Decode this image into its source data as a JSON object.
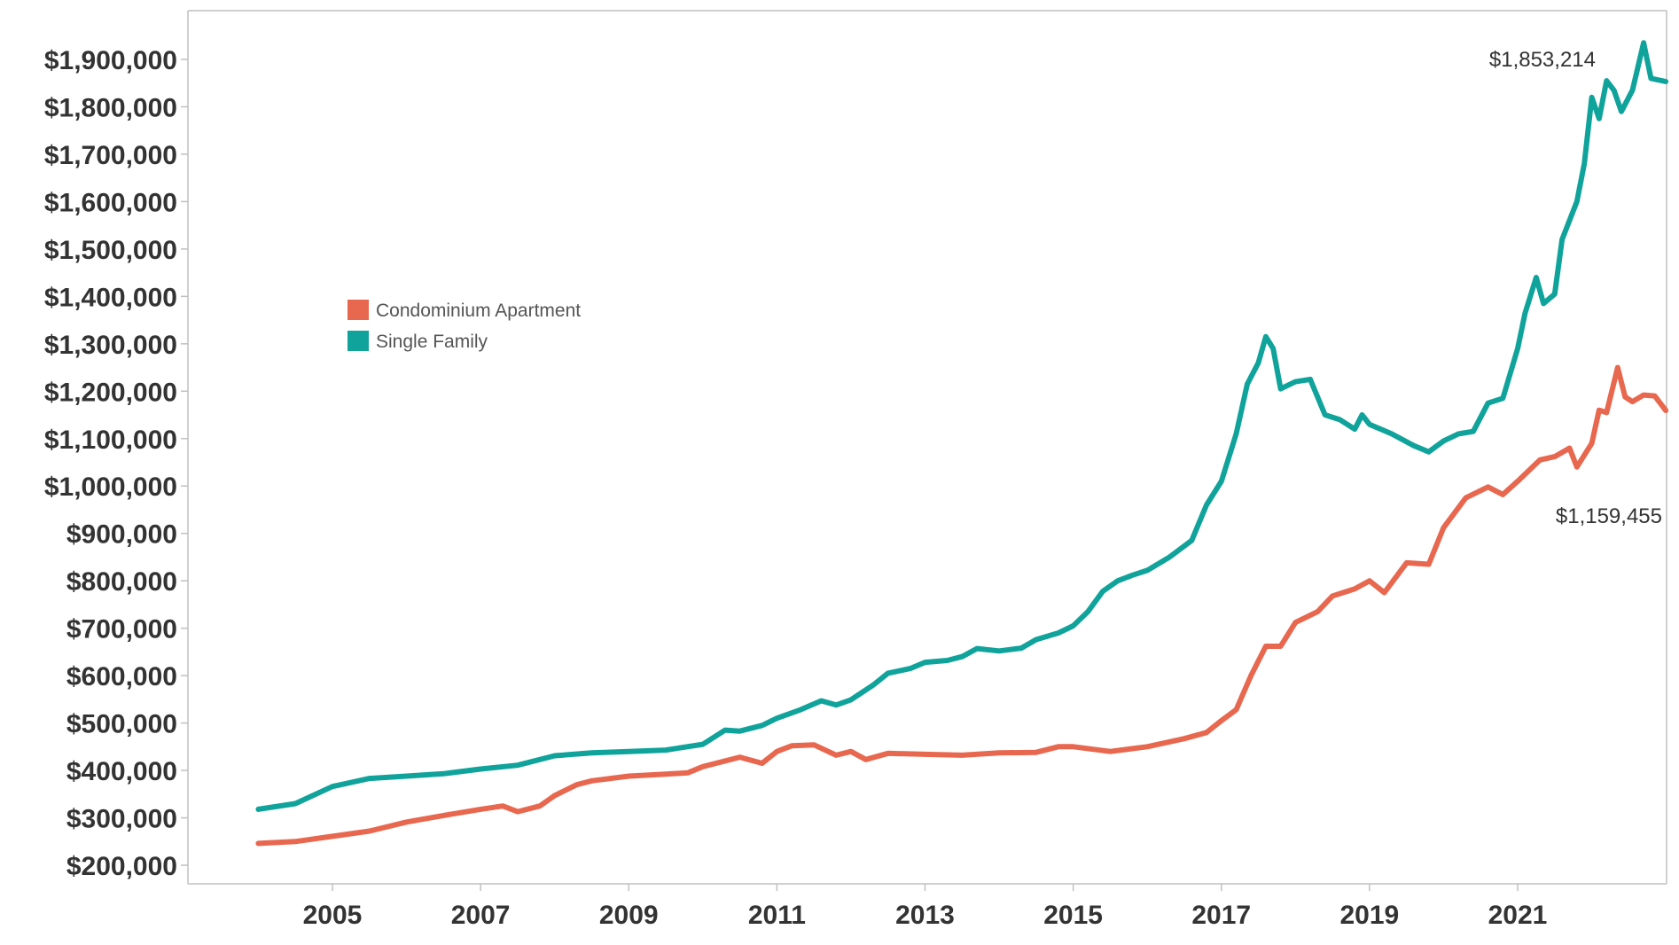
{
  "chart_data": {
    "type": "line",
    "title": "",
    "xlabel": "",
    "ylabel": "",
    "x_ticks": [
      "2005",
      "2007",
      "2009",
      "2011",
      "2013",
      "2015",
      "2017",
      "2019",
      "2021"
    ],
    "y_ticks": [
      "$200,000",
      "$300,000",
      "$400,000",
      "$500,000",
      "$600,000",
      "$700,000",
      "$800,000",
      "$900,000",
      "$1,000,000",
      "$1,100,000",
      "$1,200,000",
      "$1,300,000",
      "$1,400,000",
      "$1,500,000",
      "$1,600,000",
      "$1,700,000",
      "$1,800,000",
      "$1,900,000"
    ],
    "ylim": [
      200000,
      1900000
    ],
    "grid": false,
    "legend_position": "upper-left inside plot",
    "series": [
      {
        "name": "Condominium Apartment",
        "color": "#E8674F",
        "end_label": "$1,159,455",
        "points": [
          [
            2004.0,
            246000
          ],
          [
            2004.5,
            250000
          ],
          [
            2005.0,
            261000
          ],
          [
            2005.5,
            272000
          ],
          [
            2006.0,
            291000
          ],
          [
            2006.5,
            305000
          ],
          [
            2007.0,
            318000
          ],
          [
            2007.3,
            325000
          ],
          [
            2007.5,
            313000
          ],
          [
            2007.8,
            325000
          ],
          [
            2008.0,
            347000
          ],
          [
            2008.3,
            370000
          ],
          [
            2008.5,
            378000
          ],
          [
            2009.0,
            388000
          ],
          [
            2009.5,
            392000
          ],
          [
            2009.8,
            395000
          ],
          [
            2010.0,
            408000
          ],
          [
            2010.5,
            428000
          ],
          [
            2010.8,
            415000
          ],
          [
            2011.0,
            440000
          ],
          [
            2011.2,
            452000
          ],
          [
            2011.5,
            454000
          ],
          [
            2011.8,
            432000
          ],
          [
            2012.0,
            440000
          ],
          [
            2012.2,
            423000
          ],
          [
            2012.5,
            436000
          ],
          [
            2013.0,
            434000
          ],
          [
            2013.5,
            432000
          ],
          [
            2014.0,
            437000
          ],
          [
            2014.5,
            438000
          ],
          [
            2014.8,
            450000
          ],
          [
            2015.0,
            450000
          ],
          [
            2015.5,
            440000
          ],
          [
            2016.0,
            450000
          ],
          [
            2016.5,
            467000
          ],
          [
            2016.8,
            480000
          ],
          [
            2017.0,
            505000
          ],
          [
            2017.2,
            528000
          ],
          [
            2017.4,
            600000
          ],
          [
            2017.6,
            662000
          ],
          [
            2017.8,
            662000
          ],
          [
            2018.0,
            712000
          ],
          [
            2018.3,
            735000
          ],
          [
            2018.5,
            768000
          ],
          [
            2018.8,
            783000
          ],
          [
            2019.0,
            800000
          ],
          [
            2019.2,
            775000
          ],
          [
            2019.5,
            838000
          ],
          [
            2019.8,
            835000
          ],
          [
            2020.0,
            912000
          ],
          [
            2020.3,
            975000
          ],
          [
            2020.6,
            998000
          ],
          [
            2020.8,
            982000
          ],
          [
            2021.0,
            1010000
          ],
          [
            2021.3,
            1055000
          ],
          [
            2021.5,
            1062000
          ],
          [
            2021.7,
            1080000
          ],
          [
            2021.8,
            1040000
          ],
          [
            2022.0,
            1090000
          ],
          [
            2022.1,
            1160000
          ],
          [
            2022.2,
            1155000
          ],
          [
            2022.35,
            1250000
          ],
          [
            2022.45,
            1188000
          ],
          [
            2022.55,
            1178000
          ],
          [
            2022.7,
            1192000
          ],
          [
            2022.85,
            1190000
          ],
          [
            2023.0,
            1159455
          ]
        ]
      },
      {
        "name": "Single Family",
        "color": "#10A39B",
        "end_label": "$1,853,214",
        "points": [
          [
            2004.0,
            318000
          ],
          [
            2004.5,
            330000
          ],
          [
            2005.0,
            366000
          ],
          [
            2005.5,
            383000
          ],
          [
            2006.0,
            388000
          ],
          [
            2006.5,
            393000
          ],
          [
            2007.0,
            403000
          ],
          [
            2007.5,
            411000
          ],
          [
            2008.0,
            431000
          ],
          [
            2008.5,
            437000
          ],
          [
            2009.0,
            440000
          ],
          [
            2009.5,
            443000
          ],
          [
            2010.0,
            455000
          ],
          [
            2010.3,
            485000
          ],
          [
            2010.5,
            483000
          ],
          [
            2010.8,
            495000
          ],
          [
            2011.0,
            510000
          ],
          [
            2011.3,
            527000
          ],
          [
            2011.6,
            547000
          ],
          [
            2011.8,
            538000
          ],
          [
            2012.0,
            549000
          ],
          [
            2012.3,
            580000
          ],
          [
            2012.5,
            605000
          ],
          [
            2012.8,
            615000
          ],
          [
            2013.0,
            628000
          ],
          [
            2013.3,
            632000
          ],
          [
            2013.5,
            640000
          ],
          [
            2013.7,
            657000
          ],
          [
            2014.0,
            652000
          ],
          [
            2014.3,
            658000
          ],
          [
            2014.5,
            676000
          ],
          [
            2014.8,
            690000
          ],
          [
            2015.0,
            705000
          ],
          [
            2015.2,
            735000
          ],
          [
            2015.4,
            778000
          ],
          [
            2015.6,
            800000
          ],
          [
            2015.8,
            812000
          ],
          [
            2016.0,
            822000
          ],
          [
            2016.3,
            850000
          ],
          [
            2016.6,
            885000
          ],
          [
            2016.8,
            960000
          ],
          [
            2017.0,
            1010000
          ],
          [
            2017.2,
            1110000
          ],
          [
            2017.35,
            1215000
          ],
          [
            2017.5,
            1260000
          ],
          [
            2017.6,
            1315000
          ],
          [
            2017.7,
            1290000
          ],
          [
            2017.8,
            1205000
          ],
          [
            2018.0,
            1220000
          ],
          [
            2018.2,
            1225000
          ],
          [
            2018.4,
            1150000
          ],
          [
            2018.6,
            1140000
          ],
          [
            2018.8,
            1120000
          ],
          [
            2018.9,
            1150000
          ],
          [
            2019.0,
            1130000
          ],
          [
            2019.3,
            1110000
          ],
          [
            2019.6,
            1085000
          ],
          [
            2019.8,
            1072000
          ],
          [
            2020.0,
            1095000
          ],
          [
            2020.2,
            1110000
          ],
          [
            2020.4,
            1115000
          ],
          [
            2020.6,
            1175000
          ],
          [
            2020.8,
            1185000
          ],
          [
            2021.0,
            1290000
          ],
          [
            2021.1,
            1365000
          ],
          [
            2021.25,
            1440000
          ],
          [
            2021.35,
            1385000
          ],
          [
            2021.5,
            1405000
          ],
          [
            2021.6,
            1520000
          ],
          [
            2021.8,
            1600000
          ],
          [
            2021.9,
            1680000
          ],
          [
            2022.0,
            1820000
          ],
          [
            2022.1,
            1775000
          ],
          [
            2022.2,
            1855000
          ],
          [
            2022.3,
            1835000
          ],
          [
            2022.4,
            1790000
          ],
          [
            2022.55,
            1835000
          ],
          [
            2022.7,
            1935000
          ],
          [
            2022.8,
            1860000
          ],
          [
            2023.0,
            1853214
          ]
        ]
      }
    ]
  }
}
